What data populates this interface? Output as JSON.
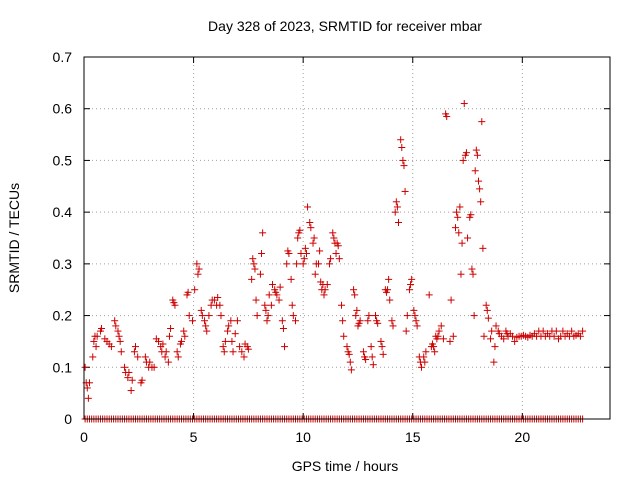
{
  "chart_data": {
    "type": "scatter",
    "title": "Day 328 of 2023, SRMTID for receiver mbar",
    "xlabel": "GPS time / hours",
    "ylabel": "SRMTID / TECUs",
    "xlim": [
      0,
      24
    ],
    "ylim": [
      0,
      0.7
    ],
    "x_ticks": [
      "0",
      "5",
      "10",
      "15",
      "20"
    ],
    "y_ticks": [
      "0",
      "0.1",
      "0.2",
      "0.3",
      "0.4",
      "0.5",
      "0.6",
      "0.7"
    ],
    "grid": true,
    "marker": "plus",
    "color": "#cc0000",
    "zero_series": {
      "x_start": 0.05,
      "x_end": 22.8,
      "step": 0.1,
      "value": 0
    },
    "points": [
      [
        0.05,
        0.1
      ],
      [
        0.1,
        0.07
      ],
      [
        0.15,
        0.06
      ],
      [
        0.2,
        0.04
      ],
      [
        0.25,
        0.07
      ],
      [
        0.4,
        0.12
      ],
      [
        0.45,
        0.15
      ],
      [
        0.5,
        0.16
      ],
      [
        0.55,
        0.14
      ],
      [
        0.6,
        0.16
      ],
      [
        0.75,
        0.17
      ],
      [
        0.8,
        0.175
      ],
      [
        0.95,
        0.155
      ],
      [
        1.05,
        0.15
      ],
      [
        1.15,
        0.145
      ],
      [
        1.25,
        0.14
      ],
      [
        1.4,
        0.19
      ],
      [
        1.45,
        0.18
      ],
      [
        1.55,
        0.17
      ],
      [
        1.6,
        0.16
      ],
      [
        1.65,
        0.15
      ],
      [
        1.7,
        0.13
      ],
      [
        1.85,
        0.1
      ],
      [
        1.9,
        0.09
      ],
      [
        2.0,
        0.08
      ],
      [
        2.05,
        0.09
      ],
      [
        2.15,
        0.055
      ],
      [
        2.2,
        0.075
      ],
      [
        2.3,
        0.13
      ],
      [
        2.35,
        0.14
      ],
      [
        2.45,
        0.12
      ],
      [
        2.6,
        0.07
      ],
      [
        2.65,
        0.075
      ],
      [
        2.8,
        0.12
      ],
      [
        2.85,
        0.11
      ],
      [
        2.95,
        0.1
      ],
      [
        3.0,
        0.11
      ],
      [
        3.1,
        0.1
      ],
      [
        3.2,
        0.1
      ],
      [
        3.3,
        0.155
      ],
      [
        3.4,
        0.15
      ],
      [
        3.5,
        0.14
      ],
      [
        3.55,
        0.13
      ],
      [
        3.6,
        0.145
      ],
      [
        3.7,
        0.12
      ],
      [
        3.75,
        0.13
      ],
      [
        3.85,
        0.11
      ],
      [
        3.9,
        0.16
      ],
      [
        3.95,
        0.175
      ],
      [
        4.05,
        0.23
      ],
      [
        4.1,
        0.225
      ],
      [
        4.15,
        0.22
      ],
      [
        4.25,
        0.13
      ],
      [
        4.3,
        0.12
      ],
      [
        4.4,
        0.145
      ],
      [
        4.45,
        0.15
      ],
      [
        4.55,
        0.17
      ],
      [
        4.6,
        0.16
      ],
      [
        4.7,
        0.24
      ],
      [
        4.75,
        0.245
      ],
      [
        4.8,
        0.2
      ],
      [
        4.95,
        0.19
      ],
      [
        5.05,
        0.25
      ],
      [
        5.15,
        0.3
      ],
      [
        5.2,
        0.28
      ],
      [
        5.25,
        0.29
      ],
      [
        5.35,
        0.21
      ],
      [
        5.4,
        0.2
      ],
      [
        5.5,
        0.19
      ],
      [
        5.55,
        0.18
      ],
      [
        5.6,
        0.17
      ],
      [
        5.7,
        0.2
      ],
      [
        5.8,
        0.22
      ],
      [
        5.85,
        0.23
      ],
      [
        5.95,
        0.23
      ],
      [
        6.05,
        0.22
      ],
      [
        6.1,
        0.235
      ],
      [
        6.2,
        0.22
      ],
      [
        6.25,
        0.2
      ],
      [
        6.35,
        0.14
      ],
      [
        6.4,
        0.13
      ],
      [
        6.45,
        0.15
      ],
      [
        6.55,
        0.17
      ],
      [
        6.6,
        0.18
      ],
      [
        6.7,
        0.19
      ],
      [
        6.75,
        0.15
      ],
      [
        6.8,
        0.13
      ],
      [
        6.9,
        0.165
      ],
      [
        7.0,
        0.19
      ],
      [
        7.1,
        0.14
      ],
      [
        7.2,
        0.13
      ],
      [
        7.3,
        0.12
      ],
      [
        7.35,
        0.145
      ],
      [
        7.45,
        0.14
      ],
      [
        7.5,
        0.135
      ],
      [
        7.65,
        0.27
      ],
      [
        7.7,
        0.31
      ],
      [
        7.75,
        0.3
      ],
      [
        7.8,
        0.29
      ],
      [
        7.85,
        0.23
      ],
      [
        7.9,
        0.2
      ],
      [
        8.05,
        0.28
      ],
      [
        8.1,
        0.32
      ],
      [
        8.15,
        0.36
      ],
      [
        8.25,
        0.22
      ],
      [
        8.3,
        0.21
      ],
      [
        8.35,
        0.19
      ],
      [
        8.4,
        0.2
      ],
      [
        8.45,
        0.24
      ],
      [
        8.55,
        0.22
      ],
      [
        8.6,
        0.26
      ],
      [
        8.7,
        0.25
      ],
      [
        8.75,
        0.245
      ],
      [
        8.8,
        0.24
      ],
      [
        8.9,
        0.23
      ],
      [
        8.95,
        0.255
      ],
      [
        9.05,
        0.19
      ],
      [
        9.1,
        0.175
      ],
      [
        9.15,
        0.14
      ],
      [
        9.25,
        0.3
      ],
      [
        9.3,
        0.325
      ],
      [
        9.35,
        0.32
      ],
      [
        9.45,
        0.27
      ],
      [
        9.5,
        0.22
      ],
      [
        9.55,
        0.2
      ],
      [
        9.65,
        0.19
      ],
      [
        9.7,
        0.3
      ],
      [
        9.75,
        0.35
      ],
      [
        9.8,
        0.36
      ],
      [
        9.85,
        0.365
      ],
      [
        9.9,
        0.32
      ],
      [
        10.0,
        0.3
      ],
      [
        10.05,
        0.31
      ],
      [
        10.1,
        0.33
      ],
      [
        10.15,
        0.32
      ],
      [
        10.2,
        0.41
      ],
      [
        10.3,
        0.38
      ],
      [
        10.35,
        0.37
      ],
      [
        10.45,
        0.34
      ],
      [
        10.5,
        0.35
      ],
      [
        10.55,
        0.28
      ],
      [
        10.6,
        0.3
      ],
      [
        10.7,
        0.3
      ],
      [
        10.75,
        0.325
      ],
      [
        10.8,
        0.265
      ],
      [
        10.85,
        0.25
      ],
      [
        10.9,
        0.26
      ],
      [
        10.95,
        0.24
      ],
      [
        11.0,
        0.25
      ],
      [
        11.1,
        0.26
      ],
      [
        11.2,
        0.3
      ],
      [
        11.25,
        0.31
      ],
      [
        11.35,
        0.36
      ],
      [
        11.4,
        0.35
      ],
      [
        11.45,
        0.34
      ],
      [
        11.5,
        0.32
      ],
      [
        11.55,
        0.34
      ],
      [
        11.6,
        0.335
      ],
      [
        11.65,
        0.31
      ],
      [
        11.75,
        0.22
      ],
      [
        11.8,
        0.19
      ],
      [
        11.85,
        0.16
      ],
      [
        12.0,
        0.14
      ],
      [
        12.05,
        0.13
      ],
      [
        12.1,
        0.125
      ],
      [
        12.15,
        0.11
      ],
      [
        12.2,
        0.095
      ],
      [
        12.3,
        0.25
      ],
      [
        12.35,
        0.24
      ],
      [
        12.4,
        0.2
      ],
      [
        12.45,
        0.21
      ],
      [
        12.5,
        0.18
      ],
      [
        12.55,
        0.185
      ],
      [
        12.6,
        0.19
      ],
      [
        12.75,
        0.13
      ],
      [
        12.8,
        0.12
      ],
      [
        12.85,
        0.115
      ],
      [
        12.95,
        0.19
      ],
      [
        13.0,
        0.2
      ],
      [
        13.1,
        0.14
      ],
      [
        13.15,
        0.12
      ],
      [
        13.2,
        0.105
      ],
      [
        13.3,
        0.2
      ],
      [
        13.35,
        0.19
      ],
      [
        13.4,
        0.185
      ],
      [
        13.55,
        0.15
      ],
      [
        13.6,
        0.14
      ],
      [
        13.65,
        0.125
      ],
      [
        13.75,
        0.25
      ],
      [
        13.8,
        0.245
      ],
      [
        13.85,
        0.25
      ],
      [
        13.9,
        0.27
      ],
      [
        13.95,
        0.23
      ],
      [
        14.05,
        0.19
      ],
      [
        14.1,
        0.18
      ],
      [
        14.2,
        0.4
      ],
      [
        14.25,
        0.42
      ],
      [
        14.3,
        0.41
      ],
      [
        14.35,
        0.38
      ],
      [
        14.45,
        0.54
      ],
      [
        14.5,
        0.525
      ],
      [
        14.55,
        0.5
      ],
      [
        14.6,
        0.49
      ],
      [
        14.65,
        0.44
      ],
      [
        14.7,
        0.17
      ],
      [
        14.75,
        0.2
      ],
      [
        14.85,
        0.25
      ],
      [
        14.9,
        0.26
      ],
      [
        14.95,
        0.27
      ],
      [
        15.05,
        0.21
      ],
      [
        15.1,
        0.2
      ],
      [
        15.15,
        0.19
      ],
      [
        15.2,
        0.18
      ],
      [
        15.3,
        0.12
      ],
      [
        15.35,
        0.11
      ],
      [
        15.4,
        0.1
      ],
      [
        15.5,
        0.12
      ],
      [
        15.55,
        0.11
      ],
      [
        15.6,
        0.13
      ],
      [
        15.75,
        0.24
      ],
      [
        15.85,
        0.14
      ],
      [
        15.9,
        0.145
      ],
      [
        15.95,
        0.14
      ],
      [
        16.0,
        0.13
      ],
      [
        16.05,
        0.16
      ],
      [
        16.1,
        0.155
      ],
      [
        16.15,
        0.16
      ],
      [
        16.2,
        0.17
      ],
      [
        16.3,
        0.18
      ],
      [
        16.4,
        0.155
      ],
      [
        16.5,
        0.59
      ],
      [
        16.55,
        0.585
      ],
      [
        16.7,
        0.15
      ],
      [
        16.75,
        0.23
      ],
      [
        16.85,
        0.16
      ],
      [
        16.95,
        0.37
      ],
      [
        17.0,
        0.4
      ],
      [
        17.05,
        0.39
      ],
      [
        17.1,
        0.36
      ],
      [
        17.15,
        0.41
      ],
      [
        17.2,
        0.28
      ],
      [
        17.25,
        0.34
      ],
      [
        17.3,
        0.5
      ],
      [
        17.35,
        0.61
      ],
      [
        17.4,
        0.51
      ],
      [
        17.45,
        0.515
      ],
      [
        17.5,
        0.35
      ],
      [
        17.6,
        0.39
      ],
      [
        17.65,
        0.395
      ],
      [
        17.7,
        0.29
      ],
      [
        17.75,
        0.28
      ],
      [
        17.8,
        0.2
      ],
      [
        17.85,
        0.48
      ],
      [
        17.9,
        0.52
      ],
      [
        17.95,
        0.51
      ],
      [
        18.0,
        0.46
      ],
      [
        18.05,
        0.445
      ],
      [
        18.1,
        0.42
      ],
      [
        18.15,
        0.575
      ],
      [
        18.2,
        0.33
      ],
      [
        18.25,
        0.16
      ],
      [
        18.35,
        0.22
      ],
      [
        18.4,
        0.21
      ],
      [
        18.45,
        0.195
      ],
      [
        18.55,
        0.155
      ],
      [
        18.6,
        0.17
      ],
      [
        18.7,
        0.11
      ],
      [
        18.75,
        0.14
      ],
      [
        18.8,
        0.18
      ],
      [
        18.9,
        0.17
      ],
      [
        18.95,
        0.165
      ],
      [
        19.05,
        0.16
      ],
      [
        19.15,
        0.155
      ],
      [
        19.25,
        0.17
      ],
      [
        19.3,
        0.165
      ],
      [
        19.35,
        0.16
      ],
      [
        19.45,
        0.165
      ],
      [
        19.55,
        0.16
      ],
      [
        19.65,
        0.15
      ],
      [
        19.75,
        0.158
      ],
      [
        19.85,
        0.16
      ],
      [
        19.95,
        0.16
      ],
      [
        20.05,
        0.162
      ],
      [
        20.15,
        0.16
      ],
      [
        20.25,
        0.158
      ],
      [
        20.35,
        0.162
      ],
      [
        20.45,
        0.16
      ],
      [
        20.55,
        0.165
      ],
      [
        20.65,
        0.16
      ],
      [
        20.75,
        0.17
      ],
      [
        20.85,
        0.16
      ],
      [
        20.95,
        0.17
      ],
      [
        21.05,
        0.16
      ],
      [
        21.15,
        0.165
      ],
      [
        21.25,
        0.16
      ],
      [
        21.35,
        0.17
      ],
      [
        21.45,
        0.16
      ],
      [
        21.55,
        0.17
      ],
      [
        21.65,
        0.155
      ],
      [
        21.75,
        0.16
      ],
      [
        21.85,
        0.17
      ],
      [
        21.95,
        0.16
      ],
      [
        22.05,
        0.165
      ],
      [
        22.15,
        0.16
      ],
      [
        22.25,
        0.17
      ],
      [
        22.35,
        0.16
      ],
      [
        22.45,
        0.162
      ],
      [
        22.55,
        0.165
      ],
      [
        22.65,
        0.16
      ],
      [
        22.75,
        0.17
      ]
    ]
  }
}
